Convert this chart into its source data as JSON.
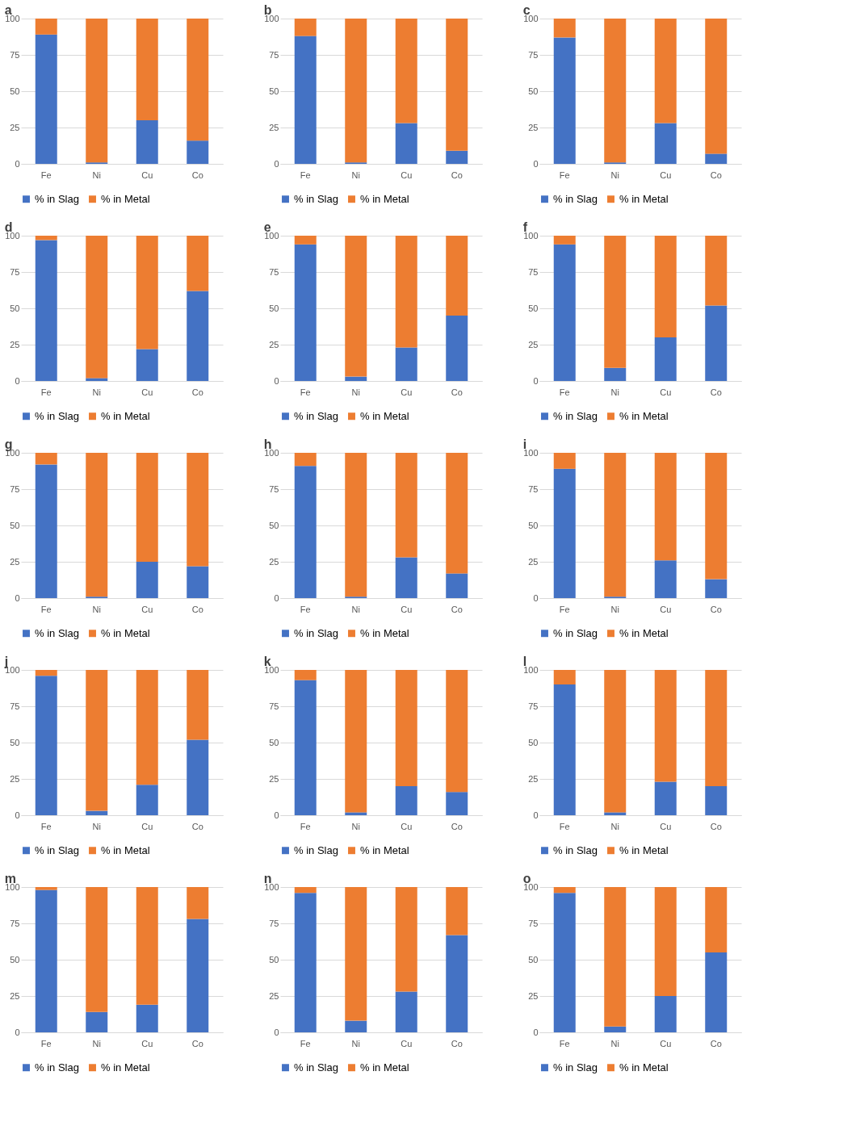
{
  "chart_data": [
    {
      "type": "bar",
      "title": "a",
      "stacked": true,
      "categories": [
        "Fe",
        "Ni",
        "Cu",
        "Co"
      ],
      "series": [
        {
          "name": "% in Slag",
          "color": "#4472c4",
          "values": [
            89,
            1,
            30,
            16
          ]
        },
        {
          "name": "% in Metal",
          "color": "#ed7d31",
          "values": [
            11,
            99,
            70,
            84
          ]
        }
      ],
      "ylim": [
        0,
        100
      ],
      "yticks": [
        0,
        25,
        50,
        75,
        100
      ],
      "grid": "y",
      "legend": "bottom"
    },
    {
      "type": "bar",
      "title": "b",
      "stacked": true,
      "categories": [
        "Fe",
        "Ni",
        "Cu",
        "Co"
      ],
      "series": [
        {
          "name": "% in Slag",
          "color": "#4472c4",
          "values": [
            88,
            1,
            28,
            9
          ]
        },
        {
          "name": "% in Metal",
          "color": "#ed7d31",
          "values": [
            12,
            99,
            72,
            91
          ]
        }
      ],
      "ylim": [
        0,
        100
      ],
      "yticks": [
        0,
        25,
        50,
        75,
        100
      ],
      "grid": "y",
      "legend": "bottom"
    },
    {
      "type": "bar",
      "title": "c",
      "stacked": true,
      "categories": [
        "Fe",
        "Ni",
        "Cu",
        "Co"
      ],
      "series": [
        {
          "name": "% in Slag",
          "color": "#4472c4",
          "values": [
            87,
            1,
            28,
            7
          ]
        },
        {
          "name": "% in Metal",
          "color": "#ed7d31",
          "values": [
            13,
            99,
            72,
            93
          ]
        }
      ],
      "ylim": [
        0,
        100
      ],
      "yticks": [
        0,
        25,
        50,
        75,
        100
      ],
      "grid": "y",
      "legend": "bottom"
    },
    {
      "type": "bar",
      "title": "d",
      "stacked": true,
      "categories": [
        "Fe",
        "Ni",
        "Cu",
        "Co"
      ],
      "series": [
        {
          "name": "% in Slag",
          "color": "#4472c4",
          "values": [
            97,
            2,
            22,
            62
          ]
        },
        {
          "name": "% in Metal",
          "color": "#ed7d31",
          "values": [
            3,
            98,
            78,
            38
          ]
        }
      ],
      "ylim": [
        0,
        100
      ],
      "yticks": [
        0,
        25,
        50,
        75,
        100
      ],
      "grid": "y",
      "legend": "bottom"
    },
    {
      "type": "bar",
      "title": "e",
      "stacked": true,
      "categories": [
        "Fe",
        "Ni",
        "Cu",
        "Co"
      ],
      "series": [
        {
          "name": "% in Slag",
          "color": "#4472c4",
          "values": [
            94,
            3,
            23,
            45
          ]
        },
        {
          "name": "% in Metal",
          "color": "#ed7d31",
          "values": [
            6,
            97,
            77,
            55
          ]
        }
      ],
      "ylim": [
        0,
        100
      ],
      "yticks": [
        0,
        25,
        50,
        75,
        100
      ],
      "grid": "y",
      "legend": "bottom"
    },
    {
      "type": "bar",
      "title": "f",
      "stacked": true,
      "categories": [
        "Fe",
        "Ni",
        "Cu",
        "Co"
      ],
      "series": [
        {
          "name": "% in Slag",
          "color": "#4472c4",
          "values": [
            94,
            9,
            30,
            52
          ]
        },
        {
          "name": "% in Metal",
          "color": "#ed7d31",
          "values": [
            6,
            91,
            70,
            48
          ]
        }
      ],
      "ylim": [
        0,
        100
      ],
      "yticks": [
        0,
        25,
        50,
        75,
        100
      ],
      "grid": "y",
      "legend": "bottom"
    },
    {
      "type": "bar",
      "title": "g",
      "stacked": true,
      "categories": [
        "Fe",
        "Ni",
        "Cu",
        "Co"
      ],
      "series": [
        {
          "name": "% in Slag",
          "color": "#4472c4",
          "values": [
            92,
            1,
            25,
            22
          ]
        },
        {
          "name": "% in Metal",
          "color": "#ed7d31",
          "values": [
            8,
            99,
            75,
            78
          ]
        }
      ],
      "ylim": [
        0,
        100
      ],
      "yticks": [
        0,
        25,
        50,
        75,
        100
      ],
      "grid": "y",
      "legend": "bottom"
    },
    {
      "type": "bar",
      "title": "h",
      "stacked": true,
      "categories": [
        "Fe",
        "Ni",
        "Cu",
        "Co"
      ],
      "series": [
        {
          "name": "% in Slag",
          "color": "#4472c4",
          "values": [
            91,
            1,
            28,
            17
          ]
        },
        {
          "name": "% in Metal",
          "color": "#ed7d31",
          "values": [
            9,
            99,
            72,
            83
          ]
        }
      ],
      "ylim": [
        0,
        100
      ],
      "yticks": [
        0,
        25,
        50,
        75,
        100
      ],
      "grid": "y",
      "legend": "bottom"
    },
    {
      "type": "bar",
      "title": "i",
      "stacked": true,
      "categories": [
        "Fe",
        "Ni",
        "Cu",
        "Co"
      ],
      "series": [
        {
          "name": "% in Slag",
          "color": "#4472c4",
          "values": [
            89,
            1,
            26,
            13
          ]
        },
        {
          "name": "% in Metal",
          "color": "#ed7d31",
          "values": [
            11,
            99,
            74,
            87
          ]
        }
      ],
      "ylim": [
        0,
        100
      ],
      "yticks": [
        0,
        25,
        50,
        75,
        100
      ],
      "grid": "y",
      "legend": "bottom"
    },
    {
      "type": "bar",
      "title": "j",
      "stacked": true,
      "categories": [
        "Fe",
        "Ni",
        "Cu",
        "Co"
      ],
      "series": [
        {
          "name": "% in Slag",
          "color": "#4472c4",
          "values": [
            96,
            3,
            21,
            52
          ]
        },
        {
          "name": "% in Metal",
          "color": "#ed7d31",
          "values": [
            4,
            97,
            79,
            48
          ]
        }
      ],
      "ylim": [
        0,
        100
      ],
      "yticks": [
        0,
        25,
        50,
        75,
        100
      ],
      "grid": "y",
      "legend": "bottom"
    },
    {
      "type": "bar",
      "title": "k",
      "stacked": true,
      "categories": [
        "Fe",
        "Ni",
        "Cu",
        "Co"
      ],
      "series": [
        {
          "name": "% in Slag",
          "color": "#4472c4",
          "values": [
            93,
            2,
            20,
            16
          ]
        },
        {
          "name": "% in Metal",
          "color": "#ed7d31",
          "values": [
            7,
            98,
            80,
            84
          ]
        }
      ],
      "ylim": [
        0,
        100
      ],
      "yticks": [
        0,
        25,
        50,
        75,
        100
      ],
      "grid": "y",
      "legend": "bottom"
    },
    {
      "type": "bar",
      "title": "l",
      "stacked": true,
      "categories": [
        "Fe",
        "Ni",
        "Cu",
        "Co"
      ],
      "series": [
        {
          "name": "% in Slag",
          "color": "#4472c4",
          "values": [
            90,
            2,
            23,
            20
          ]
        },
        {
          "name": "% in Metal",
          "color": "#ed7d31",
          "values": [
            10,
            98,
            77,
            80
          ]
        }
      ],
      "ylim": [
        0,
        100
      ],
      "yticks": [
        0,
        25,
        50,
        75,
        100
      ],
      "grid": "y",
      "legend": "bottom"
    },
    {
      "type": "bar",
      "title": "m",
      "stacked": true,
      "categories": [
        "Fe",
        "Ni",
        "Cu",
        "Co"
      ],
      "series": [
        {
          "name": "% in Slag",
          "color": "#4472c4",
          "values": [
            98,
            14,
            19,
            78
          ]
        },
        {
          "name": "% in Metal",
          "color": "#ed7d31",
          "values": [
            2,
            86,
            81,
            22
          ]
        }
      ],
      "ylim": [
        0,
        100
      ],
      "yticks": [
        0,
        25,
        50,
        75,
        100
      ],
      "grid": "y",
      "legend": "bottom"
    },
    {
      "type": "bar",
      "title": "n",
      "stacked": true,
      "categories": [
        "Fe",
        "Ni",
        "Cu",
        "Co"
      ],
      "series": [
        {
          "name": "% in Slag",
          "color": "#4472c4",
          "values": [
            96,
            8,
            28,
            67
          ]
        },
        {
          "name": "% in Metal",
          "color": "#ed7d31",
          "values": [
            4,
            92,
            72,
            33
          ]
        }
      ],
      "ylim": [
        0,
        100
      ],
      "yticks": [
        0,
        25,
        50,
        75,
        100
      ],
      "grid": "y",
      "legend": "bottom"
    },
    {
      "type": "bar",
      "title": "o",
      "stacked": true,
      "categories": [
        "Fe",
        "Ni",
        "Cu",
        "Co"
      ],
      "series": [
        {
          "name": "% in Slag",
          "color": "#4472c4",
          "values": [
            96,
            4,
            25,
            55
          ]
        },
        {
          "name": "% in Metal",
          "color": "#ed7d31",
          "values": [
            4,
            96,
            75,
            45
          ]
        }
      ],
      "ylim": [
        0,
        100
      ],
      "yticks": [
        0,
        25,
        50,
        75,
        100
      ],
      "grid": "y",
      "legend": "bottom"
    }
  ]
}
